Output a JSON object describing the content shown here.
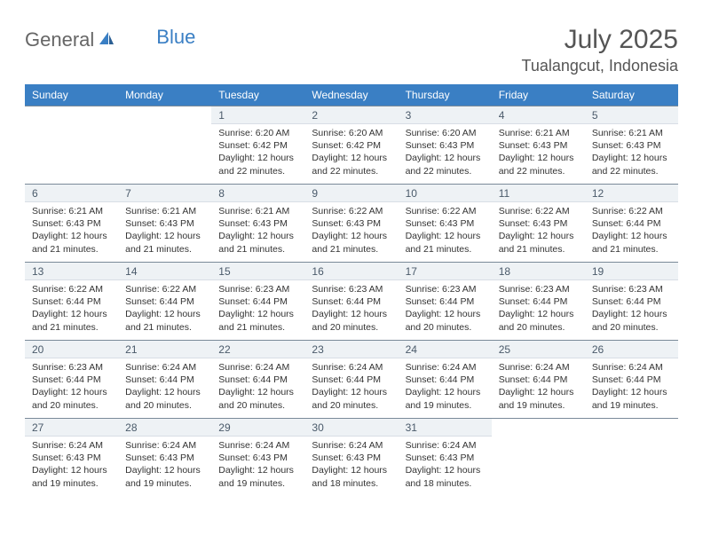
{
  "logo": {
    "part1": "General",
    "part2": "Blue"
  },
  "title": "July 2025",
  "location": "Tualangcut, Indonesia",
  "colors": {
    "header_bg": "#3a7fc4",
    "header_text": "#ffffff",
    "daynum_bg": "#eef2f5",
    "daynum_border_top": "#7a8a99",
    "body_text": "#333333"
  },
  "weekdays": [
    "Sunday",
    "Monday",
    "Tuesday",
    "Wednesday",
    "Thursday",
    "Friday",
    "Saturday"
  ],
  "weeks": [
    [
      null,
      null,
      {
        "n": "1",
        "sr": "Sunrise: 6:20 AM",
        "ss": "Sunset: 6:42 PM",
        "d1": "Daylight: 12 hours",
        "d2": "and 22 minutes."
      },
      {
        "n": "2",
        "sr": "Sunrise: 6:20 AM",
        "ss": "Sunset: 6:42 PM",
        "d1": "Daylight: 12 hours",
        "d2": "and 22 minutes."
      },
      {
        "n": "3",
        "sr": "Sunrise: 6:20 AM",
        "ss": "Sunset: 6:43 PM",
        "d1": "Daylight: 12 hours",
        "d2": "and 22 minutes."
      },
      {
        "n": "4",
        "sr": "Sunrise: 6:21 AM",
        "ss": "Sunset: 6:43 PM",
        "d1": "Daylight: 12 hours",
        "d2": "and 22 minutes."
      },
      {
        "n": "5",
        "sr": "Sunrise: 6:21 AM",
        "ss": "Sunset: 6:43 PM",
        "d1": "Daylight: 12 hours",
        "d2": "and 22 minutes."
      }
    ],
    [
      {
        "n": "6",
        "sr": "Sunrise: 6:21 AM",
        "ss": "Sunset: 6:43 PM",
        "d1": "Daylight: 12 hours",
        "d2": "and 21 minutes."
      },
      {
        "n": "7",
        "sr": "Sunrise: 6:21 AM",
        "ss": "Sunset: 6:43 PM",
        "d1": "Daylight: 12 hours",
        "d2": "and 21 minutes."
      },
      {
        "n": "8",
        "sr": "Sunrise: 6:21 AM",
        "ss": "Sunset: 6:43 PM",
        "d1": "Daylight: 12 hours",
        "d2": "and 21 minutes."
      },
      {
        "n": "9",
        "sr": "Sunrise: 6:22 AM",
        "ss": "Sunset: 6:43 PM",
        "d1": "Daylight: 12 hours",
        "d2": "and 21 minutes."
      },
      {
        "n": "10",
        "sr": "Sunrise: 6:22 AM",
        "ss": "Sunset: 6:43 PM",
        "d1": "Daylight: 12 hours",
        "d2": "and 21 minutes."
      },
      {
        "n": "11",
        "sr": "Sunrise: 6:22 AM",
        "ss": "Sunset: 6:43 PM",
        "d1": "Daylight: 12 hours",
        "d2": "and 21 minutes."
      },
      {
        "n": "12",
        "sr": "Sunrise: 6:22 AM",
        "ss": "Sunset: 6:44 PM",
        "d1": "Daylight: 12 hours",
        "d2": "and 21 minutes."
      }
    ],
    [
      {
        "n": "13",
        "sr": "Sunrise: 6:22 AM",
        "ss": "Sunset: 6:44 PM",
        "d1": "Daylight: 12 hours",
        "d2": "and 21 minutes."
      },
      {
        "n": "14",
        "sr": "Sunrise: 6:22 AM",
        "ss": "Sunset: 6:44 PM",
        "d1": "Daylight: 12 hours",
        "d2": "and 21 minutes."
      },
      {
        "n": "15",
        "sr": "Sunrise: 6:23 AM",
        "ss": "Sunset: 6:44 PM",
        "d1": "Daylight: 12 hours",
        "d2": "and 21 minutes."
      },
      {
        "n": "16",
        "sr": "Sunrise: 6:23 AM",
        "ss": "Sunset: 6:44 PM",
        "d1": "Daylight: 12 hours",
        "d2": "and 20 minutes."
      },
      {
        "n": "17",
        "sr": "Sunrise: 6:23 AM",
        "ss": "Sunset: 6:44 PM",
        "d1": "Daylight: 12 hours",
        "d2": "and 20 minutes."
      },
      {
        "n": "18",
        "sr": "Sunrise: 6:23 AM",
        "ss": "Sunset: 6:44 PM",
        "d1": "Daylight: 12 hours",
        "d2": "and 20 minutes."
      },
      {
        "n": "19",
        "sr": "Sunrise: 6:23 AM",
        "ss": "Sunset: 6:44 PM",
        "d1": "Daylight: 12 hours",
        "d2": "and 20 minutes."
      }
    ],
    [
      {
        "n": "20",
        "sr": "Sunrise: 6:23 AM",
        "ss": "Sunset: 6:44 PM",
        "d1": "Daylight: 12 hours",
        "d2": "and 20 minutes."
      },
      {
        "n": "21",
        "sr": "Sunrise: 6:24 AM",
        "ss": "Sunset: 6:44 PM",
        "d1": "Daylight: 12 hours",
        "d2": "and 20 minutes."
      },
      {
        "n": "22",
        "sr": "Sunrise: 6:24 AM",
        "ss": "Sunset: 6:44 PM",
        "d1": "Daylight: 12 hours",
        "d2": "and 20 minutes."
      },
      {
        "n": "23",
        "sr": "Sunrise: 6:24 AM",
        "ss": "Sunset: 6:44 PM",
        "d1": "Daylight: 12 hours",
        "d2": "and 20 minutes."
      },
      {
        "n": "24",
        "sr": "Sunrise: 6:24 AM",
        "ss": "Sunset: 6:44 PM",
        "d1": "Daylight: 12 hours",
        "d2": "and 19 minutes."
      },
      {
        "n": "25",
        "sr": "Sunrise: 6:24 AM",
        "ss": "Sunset: 6:44 PM",
        "d1": "Daylight: 12 hours",
        "d2": "and 19 minutes."
      },
      {
        "n": "26",
        "sr": "Sunrise: 6:24 AM",
        "ss": "Sunset: 6:44 PM",
        "d1": "Daylight: 12 hours",
        "d2": "and 19 minutes."
      }
    ],
    [
      {
        "n": "27",
        "sr": "Sunrise: 6:24 AM",
        "ss": "Sunset: 6:43 PM",
        "d1": "Daylight: 12 hours",
        "d2": "and 19 minutes."
      },
      {
        "n": "28",
        "sr": "Sunrise: 6:24 AM",
        "ss": "Sunset: 6:43 PM",
        "d1": "Daylight: 12 hours",
        "d2": "and 19 minutes."
      },
      {
        "n": "29",
        "sr": "Sunrise: 6:24 AM",
        "ss": "Sunset: 6:43 PM",
        "d1": "Daylight: 12 hours",
        "d2": "and 19 minutes."
      },
      {
        "n": "30",
        "sr": "Sunrise: 6:24 AM",
        "ss": "Sunset: 6:43 PM",
        "d1": "Daylight: 12 hours",
        "d2": "and 18 minutes."
      },
      {
        "n": "31",
        "sr": "Sunrise: 6:24 AM",
        "ss": "Sunset: 6:43 PM",
        "d1": "Daylight: 12 hours",
        "d2": "and 18 minutes."
      },
      null,
      null
    ]
  ]
}
